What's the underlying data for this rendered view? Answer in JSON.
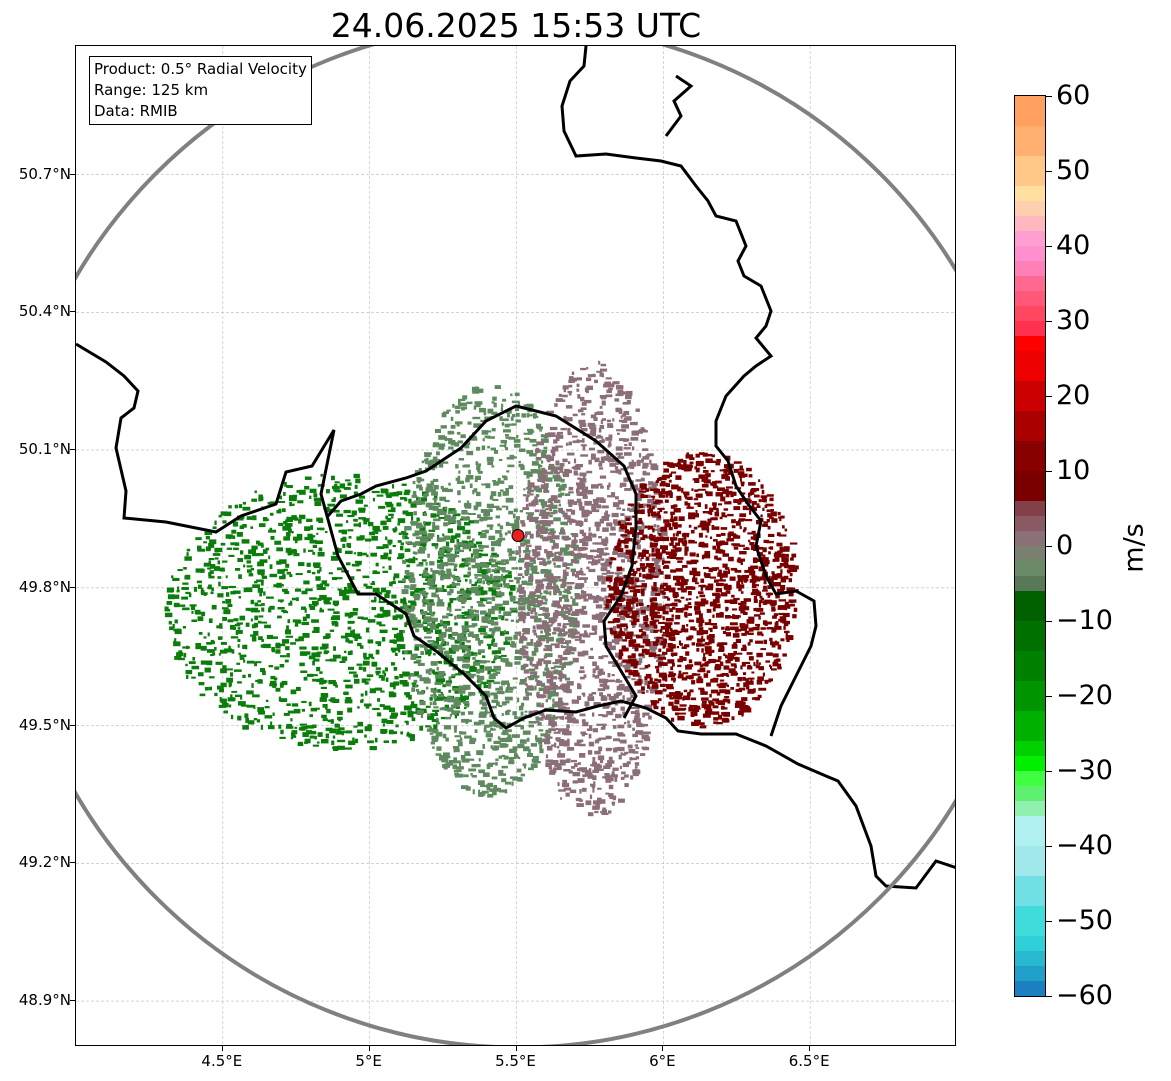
{
  "title": "24.06.2025 15:53 UTC",
  "info_box": {
    "product": "Product: 0.5° Radial Velocity",
    "range": "Range: 125 km",
    "source": "Data: RMIB"
  },
  "map": {
    "lon_range": [
      4.0,
      7.0
    ],
    "lat_range": [
      48.8,
      50.98
    ],
    "lon_ticks": [
      {
        "value": 4.5,
        "label": "4.5°E"
      },
      {
        "value": 5.0,
        "label": "5°E"
      },
      {
        "value": 5.5,
        "label": "5.5°E"
      },
      {
        "value": 6.0,
        "label": "6°E"
      },
      {
        "value": 6.5,
        "label": "6.5°E"
      }
    ],
    "lat_ticks": [
      {
        "value": 50.7,
        "label": "50.7°N"
      },
      {
        "value": 50.4,
        "label": "50.4°N"
      },
      {
        "value": 50.1,
        "label": "50.1°N"
      },
      {
        "value": 49.8,
        "label": "49.8°N"
      },
      {
        "value": 49.5,
        "label": "49.5°N"
      },
      {
        "value": 49.2,
        "label": "49.2°N"
      },
      {
        "value": 48.9,
        "label": "48.9°N"
      }
    ],
    "radar_site": {
      "lon": 5.505,
      "lat": 49.914,
      "color": "#e82020"
    },
    "range_ring_color": "#808080",
    "border_color": "#000000",
    "echo_regions": [
      {
        "name": "inbound-strong",
        "color": "#0a7d0a",
        "lon": [
          4.3,
          5.5
        ],
        "lat": [
          49.45,
          50.05
        ]
      },
      {
        "name": "inbound-light",
        "color": "#5f8a5f",
        "lon": [
          5.1,
          5.7
        ],
        "lat": [
          49.35,
          50.25
        ]
      },
      {
        "name": "near-zero",
        "color": "#8c6e78",
        "lon": [
          5.5,
          6.0
        ],
        "lat": [
          49.3,
          50.3
        ]
      },
      {
        "name": "outbound",
        "color": "#7a0000",
        "lon": [
          5.8,
          6.45
        ],
        "lat": [
          49.5,
          50.1
        ]
      }
    ]
  },
  "colorbar": {
    "unit": "m/s",
    "min": -60,
    "max": 60,
    "ticks": [
      {
        "value": 60,
        "label": "60"
      },
      {
        "value": 50,
        "label": "50"
      },
      {
        "value": 40,
        "label": "40"
      },
      {
        "value": 30,
        "label": "30"
      },
      {
        "value": 20,
        "label": "20"
      },
      {
        "value": 10,
        "label": "10"
      },
      {
        "value": 0,
        "label": "0"
      },
      {
        "value": -10,
        "label": "−10"
      },
      {
        "value": -20,
        "label": "−20"
      },
      {
        "value": -30,
        "label": "−30"
      },
      {
        "value": -40,
        "label": "−40"
      },
      {
        "value": -50,
        "label": "−50"
      },
      {
        "value": -60,
        "label": "−60"
      }
    ],
    "segments": [
      {
        "from": 56,
        "to": 60,
        "color": "#ffa060"
      },
      {
        "from": 52,
        "to": 56,
        "color": "#ffb070"
      },
      {
        "from": 48,
        "to": 52,
        "color": "#ffc888"
      },
      {
        "from": 46,
        "to": 48,
        "color": "#ffe0a0"
      },
      {
        "from": 44,
        "to": 46,
        "color": "#ffd0b0"
      },
      {
        "from": 42,
        "to": 44,
        "color": "#ffb8c0"
      },
      {
        "from": 40,
        "to": 42,
        "color": "#ff9ed0"
      },
      {
        "from": 38,
        "to": 40,
        "color": "#ff90d0"
      },
      {
        "from": 36,
        "to": 38,
        "color": "#ff80b8"
      },
      {
        "from": 34,
        "to": 36,
        "color": "#ff6890"
      },
      {
        "from": 32,
        "to": 34,
        "color": "#ff5878"
      },
      {
        "from": 30,
        "to": 32,
        "color": "#ff4860"
      },
      {
        "from": 28,
        "to": 30,
        "color": "#ff3050"
      },
      {
        "from": 26,
        "to": 28,
        "color": "#ff0000"
      },
      {
        "from": 22,
        "to": 26,
        "color": "#ee0000"
      },
      {
        "from": 18,
        "to": 22,
        "color": "#cc0000"
      },
      {
        "from": 14,
        "to": 18,
        "color": "#aa0000"
      },
      {
        "from": 10,
        "to": 14,
        "color": "#880000"
      },
      {
        "from": 6,
        "to": 10,
        "color": "#7a0000"
      },
      {
        "from": 4,
        "to": 6,
        "color": "#844048"
      },
      {
        "from": 2,
        "to": 4,
        "color": "#8a5a62"
      },
      {
        "from": 0,
        "to": 2,
        "color": "#8c7078"
      },
      {
        "from": -2,
        "to": 0,
        "color": "#7a8070"
      },
      {
        "from": -4,
        "to": -2,
        "color": "#6a8a68"
      },
      {
        "from": -6,
        "to": -4,
        "color": "#587858"
      },
      {
        "from": -10,
        "to": -6,
        "color": "#006000"
      },
      {
        "from": -14,
        "to": -10,
        "color": "#007000"
      },
      {
        "from": -18,
        "to": -14,
        "color": "#008000"
      },
      {
        "from": -22,
        "to": -18,
        "color": "#009500"
      },
      {
        "from": -26,
        "to": -22,
        "color": "#00b000"
      },
      {
        "from": -28,
        "to": -26,
        "color": "#00d000"
      },
      {
        "from": -30,
        "to": -28,
        "color": "#00f000"
      },
      {
        "from": -32,
        "to": -30,
        "color": "#40ff40"
      },
      {
        "from": -34,
        "to": -32,
        "color": "#60f070"
      },
      {
        "from": -36,
        "to": -34,
        "color": "#90f0b0"
      },
      {
        "from": -40,
        "to": -36,
        "color": "#b0f0f0"
      },
      {
        "from": -44,
        "to": -40,
        "color": "#a0e8ec"
      },
      {
        "from": -48,
        "to": -44,
        "color": "#70e0e4"
      },
      {
        "from": -52,
        "to": -48,
        "color": "#40dcdc"
      },
      {
        "from": -54,
        "to": -52,
        "color": "#30d0d8"
      },
      {
        "from": -56,
        "to": -54,
        "color": "#28b8d0"
      },
      {
        "from": -58,
        "to": -56,
        "color": "#20a0c8"
      },
      {
        "from": -60,
        "to": -58,
        "color": "#1a80c0"
      }
    ]
  }
}
